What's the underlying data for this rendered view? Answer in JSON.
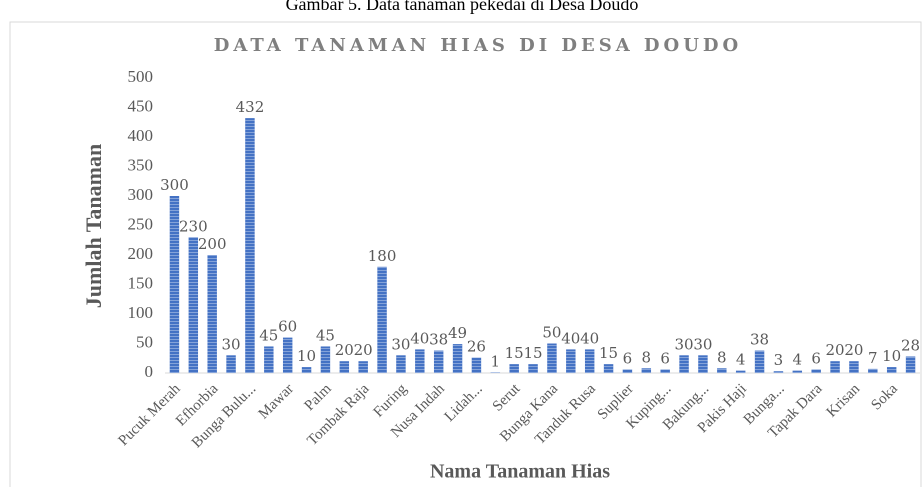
{
  "caption": "Gambar 5. Data tanaman pekedai di Desa Doudo",
  "chart_data": {
    "type": "bar",
    "title": "DATA TANAMAN HIAS DI DESA DOUDO",
    "x_label": "Nama Tanaman Hias",
    "y_label": "Jumlah Tanaman",
    "categories": [
      "Pucuk Merah",
      null,
      "Efhorbia",
      null,
      "Bunga Bulu...",
      null,
      "Mawar",
      null,
      "Palm",
      null,
      "Tombak Raja",
      null,
      "Furing",
      null,
      "Nusa Indah",
      null,
      "Lidah...",
      null,
      "Serut",
      null,
      "Bunga Kana",
      null,
      "Tanduk Rusa",
      null,
      "Suplier",
      null,
      "Kuping...",
      null,
      "Bakung...",
      null,
      "Pakis Haji",
      null,
      "Bunga...",
      null,
      "Tapak Dara",
      null,
      "Krisan",
      null,
      "Soka",
      null
    ],
    "values": [
      300,
      230,
      200,
      30,
      432,
      45,
      60,
      10,
      45,
      20,
      20,
      180,
      30,
      40,
      38,
      49,
      26,
      1,
      15,
      15,
      50,
      40,
      40,
      15,
      6,
      8,
      6,
      30,
      30,
      8,
      4,
      38,
      3,
      4,
      6,
      20,
      20,
      7,
      10,
      28
    ],
    "color": "#4472c4",
    "ylim": [
      0,
      500
    ],
    "yticks": [
      0,
      50,
      100,
      150,
      200,
      250,
      300,
      350,
      400,
      450,
      500
    ],
    "grid": false
  }
}
